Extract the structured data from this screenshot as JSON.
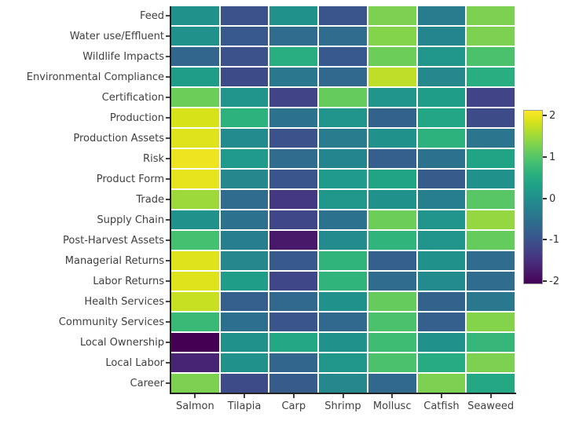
{
  "chart_data": {
    "type": "heatmap",
    "title": "",
    "xlabel": "",
    "ylabel": "",
    "x_categories": [
      "Salmon",
      "Tilapia",
      "Carp",
      "Shrimp",
      "Mollusc",
      "Catfish",
      "Seaweed"
    ],
    "y_categories": [
      "Feed",
      "Water use/Effluent",
      "Wildlife Impacts",
      "Environmental Compliance",
      "Certification",
      "Production",
      "Production Assets",
      "Risk",
      "Product Form",
      "Trade",
      "Supply Chain",
      "Post-Harvest Assets",
      "Managerial Returns",
      "Labor Returns",
      "Health Services",
      "Community Services",
      "Local Ownership",
      "Local Labor",
      "Career"
    ],
    "values": [
      [
        0.0,
        -1.0,
        0.0,
        -0.95,
        1.2,
        -0.35,
        1.2
      ],
      [
        0.0,
        -0.9,
        -0.6,
        -0.6,
        1.25,
        -0.2,
        1.2
      ],
      [
        -0.7,
        -1.0,
        0.5,
        -0.9,
        1.1,
        0.1,
        0.85
      ],
      [
        0.2,
        -1.1,
        -0.4,
        -0.65,
        1.6,
        -0.15,
        0.5
      ],
      [
        1.1,
        0.05,
        -1.2,
        1.05,
        0.05,
        0.2,
        -1.2
      ],
      [
        1.75,
        0.55,
        -0.5,
        0.05,
        -0.75,
        0.35,
        -1.1
      ],
      [
        1.8,
        -0.1,
        -1.0,
        -0.35,
        0.0,
        0.55,
        -0.45
      ],
      [
        1.9,
        0.15,
        -0.6,
        -0.2,
        -0.8,
        -0.5,
        0.3
      ],
      [
        1.85,
        -0.15,
        -0.95,
        0.15,
        0.3,
        -0.85,
        0.0
      ],
      [
        1.4,
        -0.6,
        -1.35,
        0.1,
        0.0,
        -0.3,
        0.95
      ],
      [
        0.0,
        -0.5,
        -1.15,
        -0.5,
        1.1,
        0.05,
        1.35
      ],
      [
        0.8,
        -0.3,
        -1.75,
        -0.1,
        0.6,
        0.05,
        1.05
      ],
      [
        1.8,
        -0.15,
        -0.9,
        0.6,
        -0.8,
        0.0,
        -0.6
      ],
      [
        1.8,
        0.2,
        -1.15,
        0.6,
        -0.6,
        -0.1,
        -0.6
      ],
      [
        1.65,
        -0.8,
        -0.65,
        0.0,
        1.05,
        -0.75,
        -0.4
      ],
      [
        0.7,
        -0.55,
        -0.95,
        -0.65,
        0.85,
        -0.8,
        1.25
      ],
      [
        -2.0,
        0.0,
        0.4,
        0.0,
        0.75,
        0.0,
        0.65
      ],
      [
        -1.6,
        0.0,
        -0.7,
        0.1,
        0.85,
        0.45,
        1.2
      ],
      [
        1.2,
        -1.1,
        -0.85,
        -0.15,
        -0.65,
        1.2,
        0.4
      ]
    ],
    "zmin": -2,
    "zmax": 2,
    "grid": false,
    "legend_position": "right-colorbar",
    "colormap": "viridis",
    "colormap_stops": [
      "#440154",
      "#48186a",
      "#472d7b",
      "#424086",
      "#3b528b",
      "#33638d",
      "#2c728e",
      "#26828e",
      "#21918c",
      "#1fa088",
      "#28ae80",
      "#3fbc73",
      "#5ec962",
      "#84d44b",
      "#addc30",
      "#d8e219",
      "#fde725"
    ],
    "colorbar": {
      "ticks": [
        2,
        1,
        0,
        -1,
        -2
      ],
      "labels": [
        "2",
        "1",
        "0",
        "-1",
        "-2"
      ]
    }
  },
  "colors": {
    "background": "#ffffff",
    "axis": "#222222",
    "tick": "#444444",
    "label_text": "#3f3f3f",
    "colorbar_border": "#9a9a9a"
  }
}
